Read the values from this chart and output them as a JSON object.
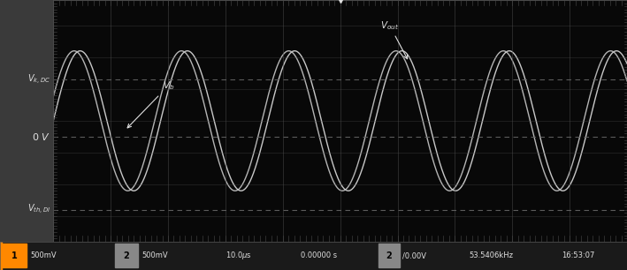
{
  "bg_color": "#2a2a2a",
  "screen_bg": "#080808",
  "grid_color": "#4a4a4a",
  "grid_color_dashed": "#666666",
  "wave_color": "#c8c8c8",
  "text_color": "#e0e0e0",
  "left_panel_color": "#3a3a3a",
  "status_bar_color": "#1a1a1a",
  "n_points": 3000,
  "t_start": 0,
  "t_end": 100,
  "vin_amplitude": 2.2,
  "vin_phase": 0.35,
  "vout_amplitude": 2.2,
  "vout_phase": 0.0,
  "freq_scale": 18.7,
  "ylim": [
    -3.8,
    3.8
  ],
  "xlim": [
    0,
    100
  ],
  "grid_lines_x": [
    10,
    20,
    30,
    40,
    50,
    60,
    70,
    80,
    90
  ],
  "grid_lines_y": [
    -3.0,
    -2.0,
    -1.0,
    0.0,
    1.0,
    2.0,
    3.0
  ],
  "hline_VkDC": 1.3,
  "hline_0V": -0.5,
  "hline_VthDI": -2.8,
  "figsize": [
    7.09,
    3.06
  ],
  "dpi": 100
}
